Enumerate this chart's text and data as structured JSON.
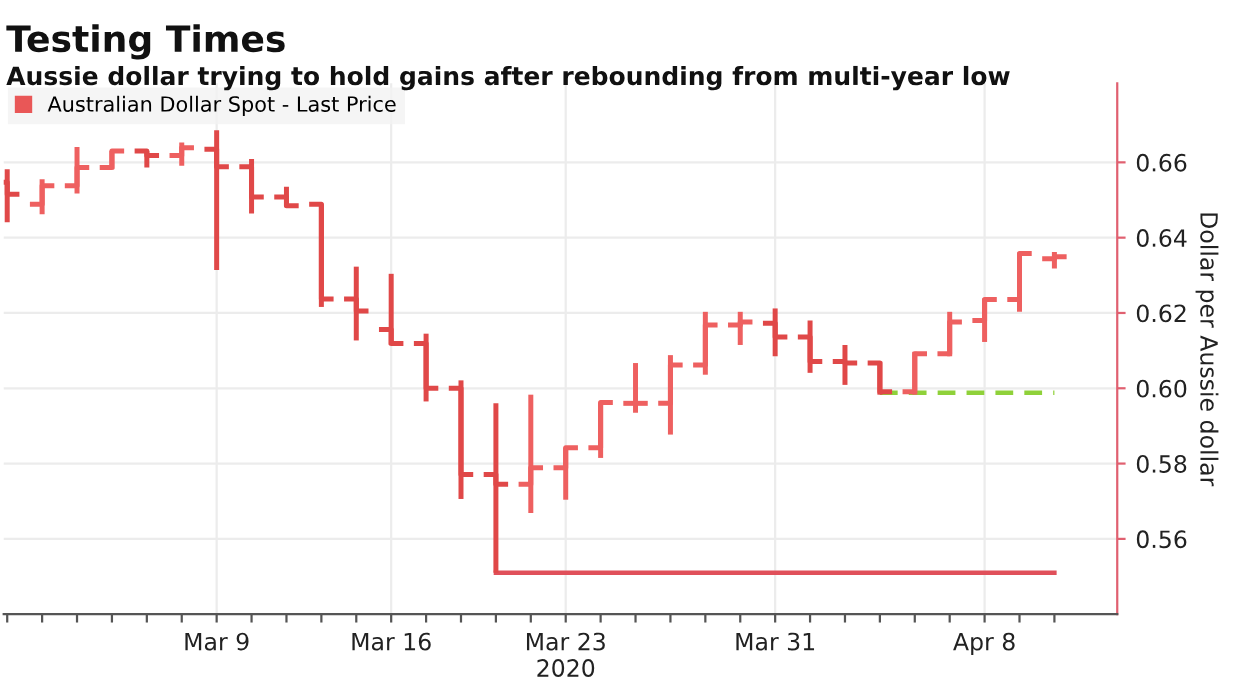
{
  "chart_data": {
    "type": "candlestick",
    "title": "Testing Times",
    "subtitle": "Aussie dollar trying to hold gains after rebounding from multi-year low",
    "ylabel": "Dollar per Aussie dollar",
    "categories": [
      null,
      null,
      null,
      null,
      null,
      null,
      "Mar 9",
      null,
      null,
      null,
      null,
      "Mar 16",
      null,
      null,
      null,
      null,
      "Mar 23\n2020",
      null,
      null,
      null,
      null,
      null,
      "Mar 31",
      null,
      null,
      null,
      null,
      null,
      "Apr 8",
      null,
      null
    ],
    "series": [
      {
        "name": "Australian Dollar Spot - Last Price",
        "color": "#e95757",
        "colors": [
          "#e04848",
          "#ee6060",
          "#ee6060",
          "#ee6060",
          "#e04848",
          "#ee6060",
          "#e04848",
          "#e04848",
          "#e04848",
          "#e04848",
          "#e04848",
          "#e04848",
          "#e04848",
          "#e04848",
          "#e04848",
          "#ee6060",
          "#ee6060",
          "#ee6060",
          "#ee6060",
          "#ee6060",
          "#ee6060",
          "#ee6060",
          "#e04848",
          "#e04848",
          "#e04848",
          "#e04848",
          "#ee6060",
          "#ee6060",
          "#ee6060",
          "#ee6060",
          "#ee6060"
        ],
        "ohlc": [
          [
            0.6547,
            0.6582,
            0.6441,
            0.6515
          ],
          [
            0.6489,
            0.6555,
            0.6462,
            0.6538
          ],
          [
            0.6538,
            0.6641,
            0.6517,
            0.6586
          ],
          [
            0.6586,
            0.663,
            0.6582,
            0.663
          ],
          [
            0.663,
            0.663,
            0.6586,
            0.6618
          ],
          [
            0.6618,
            0.6653,
            0.6591,
            0.6639
          ],
          [
            0.6635,
            0.6685,
            0.6314,
            0.6588
          ],
          [
            0.6588,
            0.6609,
            0.6464,
            0.6508
          ],
          [
            0.6508,
            0.6535,
            0.6482,
            0.6485
          ],
          [
            0.6489,
            0.6489,
            0.6216,
            0.6237
          ],
          [
            0.6237,
            0.6323,
            0.6127,
            0.6205
          ],
          [
            0.6156,
            0.6304,
            0.6115,
            0.6119
          ],
          [
            0.6119,
            0.6145,
            0.5965,
            0.6
          ],
          [
            0.6,
            0.6021,
            0.5706,
            0.5771
          ],
          [
            0.5771,
            0.596,
            0.551,
            0.5745
          ],
          [
            0.5745,
            0.5983,
            0.5669,
            0.5789
          ],
          [
            0.5789,
            0.5842,
            0.5704,
            0.5842
          ],
          [
            0.5842,
            0.5962,
            0.5815,
            0.5962
          ],
          [
            0.596,
            0.6067,
            0.5935,
            0.596
          ],
          [
            0.596,
            0.6088,
            0.5877,
            0.6062
          ],
          [
            0.6062,
            0.6203,
            0.6036,
            0.6168
          ],
          [
            0.6168,
            0.6203,
            0.6115,
            0.6176
          ],
          [
            0.6173,
            0.6212,
            0.6085,
            0.6136
          ],
          [
            0.6136,
            0.618,
            0.6041,
            0.6071
          ],
          [
            0.6071,
            0.6115,
            0.6009,
            0.6067
          ],
          [
            0.6067,
            0.6071,
            0.5983,
            0.5991
          ],
          [
            0.5991,
            0.6097,
            0.5983,
            0.6092
          ],
          [
            0.6092,
            0.6203,
            0.6085,
            0.6176
          ],
          [
            0.618,
            0.6238,
            0.6123,
            0.6236
          ],
          [
            0.6236,
            0.636,
            0.6203,
            0.6358
          ],
          [
            0.6344,
            0.6362,
            0.6318,
            0.6349
          ]
        ]
      },
      {
        "type": "line",
        "color": "#e0505a",
        "line_style": "solid",
        "values": [
          null,
          null,
          null,
          null,
          null,
          null,
          null,
          null,
          null,
          null,
          null,
          null,
          null,
          null,
          0.551,
          0.551,
          0.551,
          0.551,
          0.551,
          0.551,
          0.551,
          0.551,
          0.551,
          0.551,
          0.551,
          0.551,
          0.551,
          0.551,
          0.551,
          0.551,
          0.551
        ]
      },
      {
        "type": "line",
        "color": "#8fd13a",
        "line_style": "dashed",
        "values": [
          null,
          null,
          null,
          null,
          null,
          null,
          null,
          null,
          null,
          null,
          null,
          null,
          null,
          null,
          null,
          null,
          null,
          null,
          null,
          null,
          null,
          null,
          null,
          null,
          null,
          0.5988,
          0.5988,
          0.5988,
          0.5988,
          0.5988,
          0.5988
        ]
      }
    ],
    "ylim": [
      0.54,
      0.681
    ],
    "yticks": [
      0.56,
      0.58,
      {
        "value": 0.6,
        "label": "0.60"
      },
      0.62,
      0.64,
      0.66
    ],
    "grid": true,
    "legend": "top left"
  }
}
